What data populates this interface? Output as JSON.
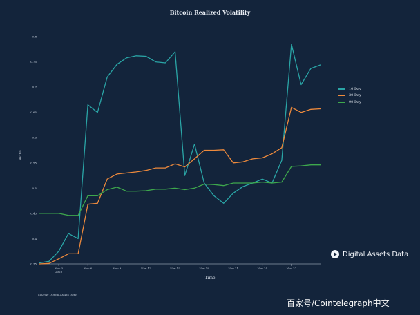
{
  "chart_data": {
    "type": "line",
    "title": "Bitcoin Realized Volatility",
    "xlabel": "Time",
    "ylabel": "Rv 10",
    "x": [
      "2020-11-01",
      "2020-11-02",
      "2020-11-03",
      "2020-11-04",
      "2020-11-05",
      "2020-11-06",
      "2020-11-07",
      "2020-11-08",
      "2020-11-09",
      "2020-11-10",
      "2020-11-11",
      "2020-11-12",
      "2020-11-13",
      "2020-11-14",
      "2020-11-15",
      "2020-11-16",
      "2020-11-17",
      "2020-11-18",
      "2020-11-19",
      "2020-11-20",
      "2020-11-21",
      "2020-11-22",
      "2020-11-23",
      "2020-11-24",
      "2020-11-25",
      "2020-11-26",
      "2020-11-27",
      "2020-11-28",
      "2020-11-29",
      "2020-11-30"
    ],
    "x_tick_labels": [
      "Nov 3",
      "Nov 6",
      "Nov 9",
      "Nov 12",
      "Nov 15",
      "Nov 18",
      "Nov 21",
      "Nov 24",
      "Nov 27"
    ],
    "x_tick_dates": [
      "2020-11-03",
      "2020-11-06",
      "2020-11-09",
      "2020-11-12",
      "2020-11-15",
      "2020-11-18",
      "2020-11-21",
      "2020-11-24",
      "2020-11-27"
    ],
    "x_tick_sublabel": "2020",
    "ylim": [
      0.35,
      0.8
    ],
    "y_ticks": [
      0.35,
      0.4,
      0.45,
      0.5,
      0.55,
      0.6,
      0.65,
      0.7,
      0.75,
      0.8
    ],
    "grid": false,
    "legend_position": "right",
    "series": [
      {
        "name": "10 Day",
        "color": "#2aa5a6",
        "values": [
          0.352,
          0.355,
          0.375,
          0.41,
          0.4,
          0.665,
          0.65,
          0.72,
          0.745,
          0.758,
          0.762,
          0.761,
          0.75,
          0.748,
          0.77,
          0.525,
          0.587,
          0.51,
          0.485,
          0.47,
          0.49,
          0.503,
          0.51,
          0.518,
          0.51,
          0.555,
          0.785,
          0.705,
          0.737,
          0.744
        ]
      },
      {
        "name": "30 Day",
        "color": "#ee8a3c",
        "values": [
          0.35,
          0.351,
          0.36,
          0.37,
          0.37,
          0.468,
          0.47,
          0.518,
          0.528,
          0.53,
          0.532,
          0.535,
          0.54,
          0.54,
          0.548,
          0.542,
          0.558,
          0.575,
          0.575,
          0.576,
          0.55,
          0.552,
          0.558,
          0.56,
          0.568,
          0.58,
          0.66,
          0.65,
          0.656,
          0.657
        ]
      },
      {
        "name": "90 Day",
        "color": "#3ea84c",
        "values": [
          0.45,
          0.45,
          0.45,
          0.446,
          0.446,
          0.485,
          0.485,
          0.497,
          0.502,
          0.494,
          0.494,
          0.495,
          0.498,
          0.498,
          0.5,
          0.497,
          0.5,
          0.508,
          0.507,
          0.505,
          0.51,
          0.51,
          0.51,
          0.512,
          0.51,
          0.512,
          0.543,
          0.544,
          0.546,
          0.546
        ]
      }
    ],
    "source_note": "Source: Digital Assets Data"
  },
  "branding": {
    "logo_text": "Digital Assets Data",
    "watermark": "百家号/Cointelegraph中文"
  },
  "colors": {
    "background": "#13243b",
    "axis": "#c9d2de"
  }
}
